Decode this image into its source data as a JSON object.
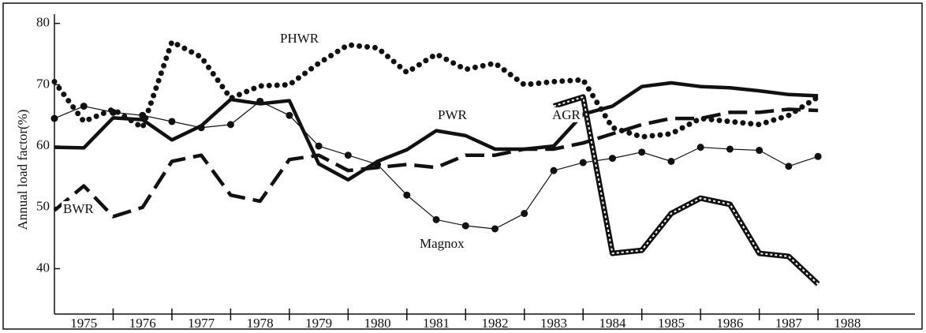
{
  "chart_data": {
    "type": "line",
    "ylabel": "Annual load factor(%)",
    "x": [
      1975.0,
      1975.5,
      1976.0,
      1976.5,
      1977.0,
      1977.5,
      1978.0,
      1978.5,
      1979.0,
      1979.5,
      1980.0,
      1980.5,
      1981.0,
      1981.5,
      1982.0,
      1982.5,
      1983.0,
      1983.5,
      1984.0,
      1984.5,
      1985.0,
      1985.5,
      1986.0,
      1986.5,
      1987.0,
      1987.5,
      1988.0
    ],
    "series": [
      {
        "name": "PWR",
        "color": "#111111",
        "style": "solid",
        "values": [
          59.8,
          59.7,
          64.6,
          64.3,
          61,
          63.3,
          67.6,
          66.9,
          67.4,
          57.1,
          54.5,
          57.5,
          59.4,
          62.5,
          61.7,
          59.5,
          59.5,
          60,
          65.2,
          66.5,
          69.7,
          70.3,
          69.7,
          69.5,
          69,
          68.4,
          68.2
        ]
      },
      {
        "name": "BWR",
        "color": "#111111",
        "style": "dashed",
        "values": [
          49.5,
          53.5,
          48.5,
          50,
          57.5,
          58.5,
          52,
          51,
          57.8,
          58.5,
          56,
          56.5,
          57,
          56.5,
          58.5,
          58.5,
          59.5,
          59.5,
          60.5,
          62,
          63.5,
          64.5,
          64.5,
          65.5,
          65.5,
          66,
          65.8
        ]
      },
      {
        "name": "PHWR",
        "color": "#111111",
        "style": "dotted",
        "values": [
          70.5,
          64,
          66,
          63,
          77,
          74.5,
          67.8,
          69.8,
          70,
          73.5,
          76.5,
          76,
          72,
          75,
          72.5,
          73.5,
          70,
          70.5,
          70.8,
          63,
          61.5,
          62,
          64.5,
          64,
          63.5,
          65,
          68
        ]
      },
      {
        "name": "Magnox",
        "color": "#111111",
        "style": "markers",
        "values": [
          64.5,
          66.5,
          65.5,
          65,
          64,
          63,
          63.5,
          67.3,
          65,
          60,
          58.5,
          57,
          52,
          48,
          47,
          46.5,
          49,
          56,
          57.3,
          58,
          59,
          57.5,
          59.8,
          59.5,
          59.3,
          56.7,
          58.3
        ]
      },
      {
        "name": "AGR",
        "color": "#111111",
        "style": "striped",
        "values": [
          null,
          null,
          null,
          null,
          null,
          null,
          null,
          null,
          null,
          null,
          null,
          null,
          null,
          null,
          null,
          null,
          null,
          66.5,
          68,
          42.5,
          43,
          49,
          51.5,
          50.5,
          42.5,
          42,
          37.5
        ]
      }
    ],
    "ylim": [
      32.6,
      81.5
    ],
    "yticks": [
      40,
      50,
      60,
      70,
      80
    ],
    "xlim": [
      1975.0,
      1989.65
    ],
    "xticks": [
      {
        "value": 1975.5,
        "label": "1975"
      },
      {
        "value": 1976.5,
        "label": "1976"
      },
      {
        "value": 1977.5,
        "label": "1977"
      },
      {
        "value": 1978.5,
        "label": "1978"
      },
      {
        "value": 1979.5,
        "label": "1979"
      },
      {
        "value": 1980.5,
        "label": "1980"
      },
      {
        "value": 1981.5,
        "label": "1981"
      },
      {
        "value": 1982.5,
        "label": "1982"
      },
      {
        "value": 1983.5,
        "label": "1983"
      },
      {
        "value": 1984.5,
        "label": "1984"
      },
      {
        "value": 1985.5,
        "label": "1985"
      },
      {
        "value": 1986.5,
        "label": "1986"
      },
      {
        "value": 1987.5,
        "label": "1987"
      },
      {
        "value": 1988.5,
        "label": "1988"
      }
    ]
  }
}
